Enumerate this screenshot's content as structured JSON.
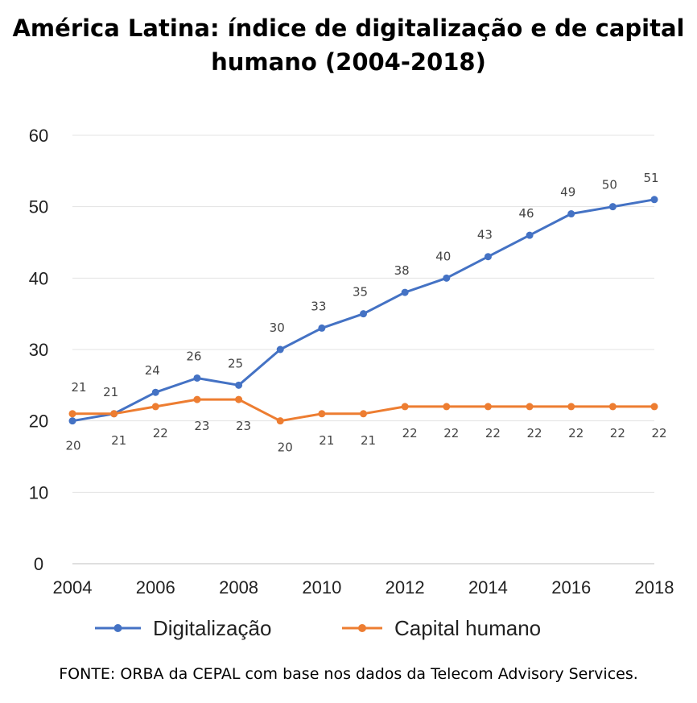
{
  "title_line1": "América Latina: índice de digitalização e de capital",
  "title_line2": "humano (2004-2018)",
  "source": "FONTE: ORBA da CEPAL com base nos dados da Telecom Advisory Services.",
  "chart_data": {
    "type": "line",
    "x": [
      2004,
      2005,
      2006,
      2007,
      2008,
      2009,
      2010,
      2011,
      2012,
      2013,
      2014,
      2015,
      2016,
      2017,
      2018
    ],
    "x_tick_labels": [
      "2004",
      "2006",
      "2008",
      "2010",
      "2012",
      "2014",
      "2016",
      "2018"
    ],
    "y_tick_labels": [
      "0",
      "10",
      "20",
      "30",
      "40",
      "50",
      "60"
    ],
    "ylim": [
      0,
      60
    ],
    "xlim": [
      2004,
      2018
    ],
    "grid": true,
    "legend_position": "bottom",
    "series": [
      {
        "name": "Digitalização",
        "color": "#4472C4",
        "values": [
          20,
          21,
          24,
          26,
          25,
          30,
          33,
          35,
          38,
          40,
          43,
          46,
          49,
          50,
          51
        ]
      },
      {
        "name": "Capital humano",
        "color": "#ED7D31",
        "values": [
          21,
          21,
          22,
          23,
          23,
          20,
          21,
          21,
          22,
          22,
          22,
          22,
          22,
          22,
          22
        ]
      }
    ]
  }
}
